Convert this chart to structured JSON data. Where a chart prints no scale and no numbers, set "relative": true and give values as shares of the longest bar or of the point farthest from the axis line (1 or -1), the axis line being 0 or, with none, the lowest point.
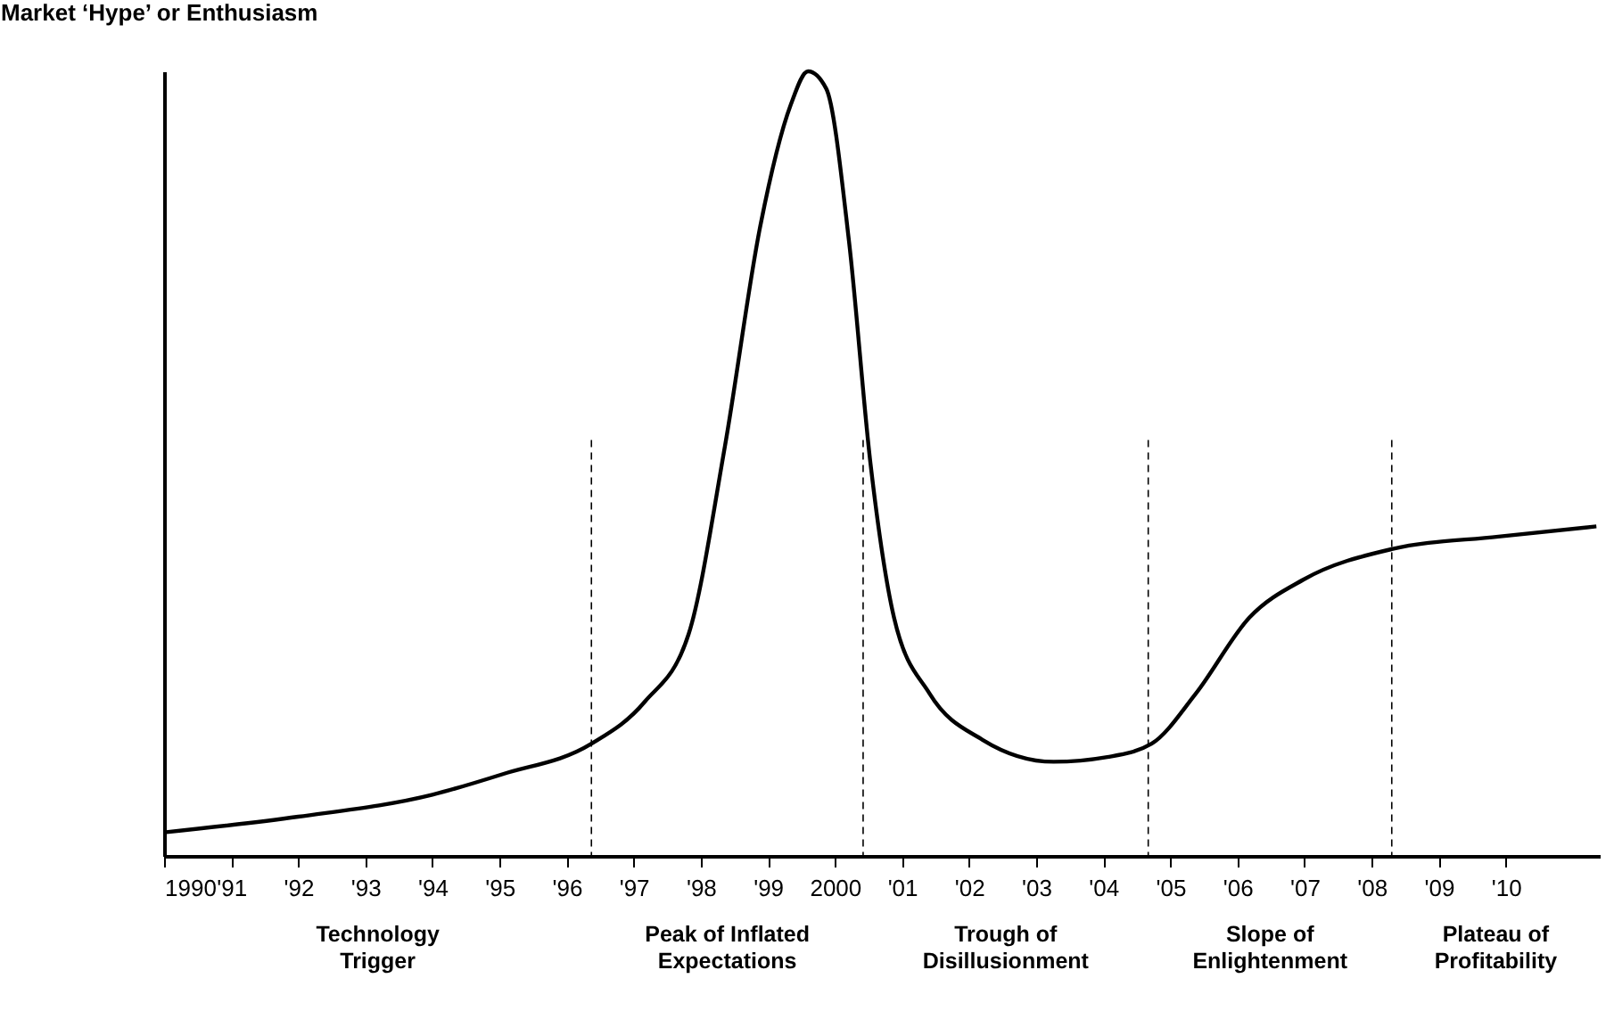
{
  "chart_data": {
    "type": "line",
    "relative": true,
    "ylabel": "Market ‘Hype’ or Enthusiasm",
    "x": [
      1990,
      1992,
      1994,
      1995.04,
      1996.37,
      1997.16,
      1997.82,
      1998.36,
      1998.89,
      1999.34,
      1999.6,
      1999.87,
      2000.21,
      2000.53,
      2000.88,
      2001.41,
      2002.2,
      2003.26,
      2004.06,
      2004.72,
      2005.38,
      2006.18,
      2006.98,
      2008.3,
      2009.89,
      2011.35
    ],
    "series": [
      {
        "color": "#000000",
        "values": [
          0.03,
          0.05,
          0.078,
          0.104,
          0.143,
          0.196,
          0.283,
          0.522,
          0.804,
          0.957,
          1,
          0.978,
          0.783,
          0.5,
          0.304,
          0.207,
          0.148,
          0.12,
          0.126,
          0.143,
          0.207,
          0.304,
          0.352,
          0.391,
          0.407,
          0.42
        ]
      }
    ],
    "xlim": [
      1990,
      2011.4
    ],
    "xticks": [
      {
        "value": 1990,
        "label": "1990"
      },
      {
        "value": 1991,
        "label": "'91"
      },
      {
        "value": 1992,
        "label": "'92"
      },
      {
        "value": 1993,
        "label": "'93"
      },
      {
        "value": 1994,
        "label": "'94"
      },
      {
        "value": 1995,
        "label": "'95"
      },
      {
        "value": 1996,
        "label": "'96"
      },
      {
        "value": 1997,
        "label": "'97"
      },
      {
        "value": 1998,
        "label": "'98"
      },
      {
        "value": 1999,
        "label": "'99"
      },
      {
        "value": 2000,
        "label": "2000"
      },
      {
        "value": 2001,
        "label": "'01"
      },
      {
        "value": 2002,
        "label": "'02"
      },
      {
        "value": 2003,
        "label": "'03"
      },
      {
        "value": 2004,
        "label": "'04"
      },
      {
        "value": 2005,
        "label": "'05"
      },
      {
        "value": 2006,
        "label": "'06"
      },
      {
        "value": 2007,
        "label": "'07"
      },
      {
        "value": 2008,
        "label": "'08"
      },
      {
        "value": 2009,
        "label": "'09"
      },
      {
        "value": 2010,
        "label": "'10"
      }
    ],
    "ref_lines": [
      {
        "axis": "x",
        "value": 1996.37,
        "line_style": "dashed"
      },
      {
        "axis": "x",
        "value": 2000.42,
        "line_style": "dashed"
      },
      {
        "axis": "x",
        "value": 2004.67,
        "line_style": "dashed"
      },
      {
        "axis": "x",
        "value": 2008.3,
        "line_style": "dashed"
      }
    ],
    "annotations": [
      "Technology Trigger",
      "Peak of Inflated Expectations",
      "Trough of Disillusionment",
      "Slope of Enlightenment",
      "Plateau of Profitability"
    ],
    "grid": false,
    "marker": "none",
    "line_style": "solid"
  }
}
